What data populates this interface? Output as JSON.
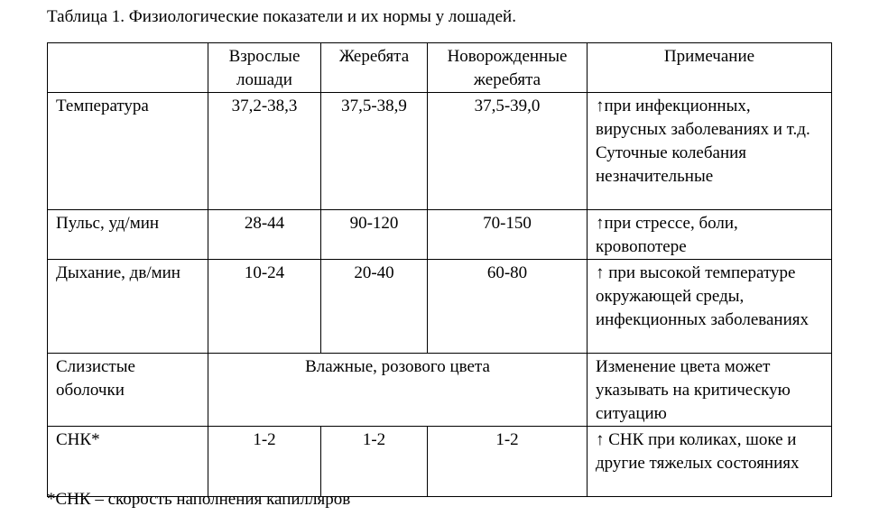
{
  "title": "Таблица 1. Физиологические показатели и их нормы у лошадей.",
  "table": {
    "header": [
      "Взрослые лошади",
      "Жеребята",
      "Новорожденные жеребята",
      "Примечание"
    ],
    "rows": [
      [
        "Температура",
        "37,2-38,3",
        "37,5-38,9",
        "37,5-39,0",
        [
          "↑при инфекционных, вирусных заболеваниях и т.д.",
          "Суточные колебания незначительные"
        ]
      ],
      [
        "Пульс, уд/мин",
        "28-44",
        "90-120",
        "70-150",
        [
          "↑при стрессе, боли, кровопотере"
        ]
      ],
      [
        "Дыхание, дв/мин",
        "10-24",
        "20-40",
        "60-80",
        [
          "↑ при высокой температуре окружающей среды, инфекционных заболеваниях"
        ]
      ],
      [
        "Слизистые оболочки",
        "Влажные, розового цвета",
        [
          "Изменение цвета может указывать на критическую ситуацию"
        ]
      ],
      [
        "СНК*",
        "1-2",
        "1-2",
        "1-2",
        [
          "↑ СНК при коликах, шоке и другие тяжелых состояниях"
        ]
      ]
    ]
  },
  "footnote": "*СНК – скорость наполнения капилляров"
}
